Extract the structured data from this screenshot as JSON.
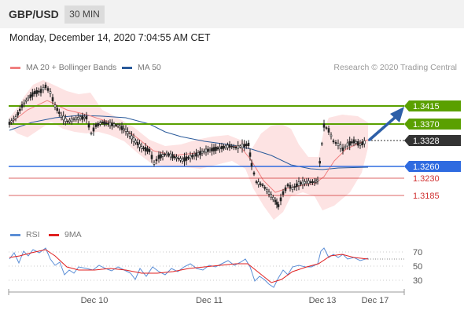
{
  "header": {
    "symbol": "GBP/USD",
    "timeframe": "30 MIN"
  },
  "datetime": "Monday, December 14, 2020 7:04:55 AM CET",
  "legend": {
    "items": [
      {
        "label": "MA 20 + Bollinger Bands",
        "color": "#f08080"
      },
      {
        "label": "MA 50",
        "color": "#2a5a9a"
      }
    ],
    "copyright": "Research © 2020 Trading Central"
  },
  "rsi_legend": {
    "items": [
      {
        "label": "RSI",
        "color": "#5b8ed6"
      },
      {
        "label": "9MA",
        "color": "#e02020"
      }
    ]
  },
  "colors": {
    "resistance": "#5aa000",
    "support": "#2f6be0",
    "target_line": "#d03030",
    "arrow": "#2d5fa8",
    "current": "#333333"
  },
  "price_levels": [
    {
      "value": "1.3415",
      "kind": "resistance"
    },
    {
      "value": "1.3370",
      "kind": "resistance"
    },
    {
      "value": "1.3328",
      "kind": "current"
    },
    {
      "value": "1.3260",
      "kind": "support"
    },
    {
      "value": "1.3230",
      "kind": "target"
    },
    {
      "value": "1.3185",
      "kind": "target"
    }
  ],
  "rsi_axis": [
    "70",
    "50",
    "30"
  ],
  "x_axis": [
    "Dec 10",
    "Dec 11",
    "Dec 13",
    "Dec 17"
  ]
}
